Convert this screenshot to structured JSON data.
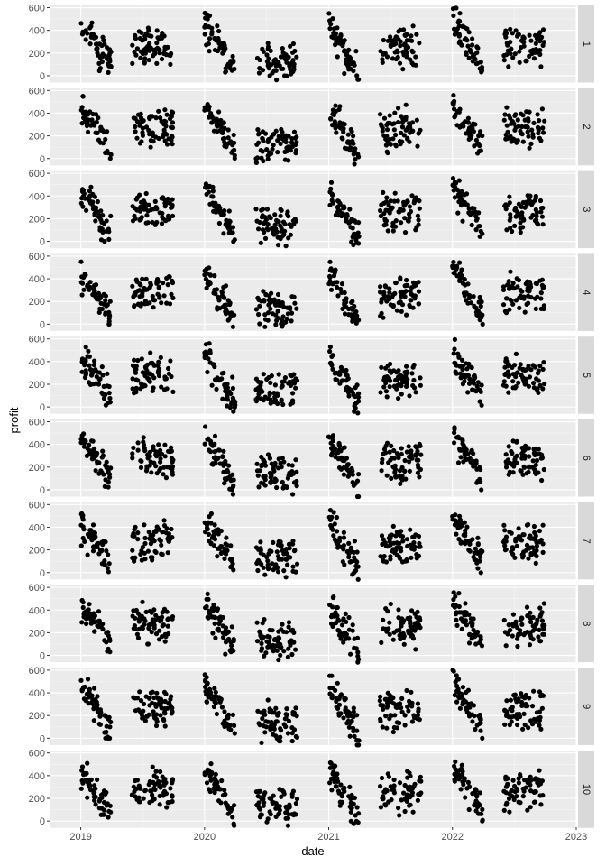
{
  "chart_data": {
    "type": "scatter",
    "xlabel": "date",
    "ylabel": "profit",
    "x_ticks": [
      "2019",
      "2020",
      "2021",
      "2022",
      "2023"
    ],
    "xlim": [
      "2018-10-01",
      "2023-01-01"
    ],
    "y_ticks": [
      0,
      200,
      400,
      600
    ],
    "ylim": [
      -60,
      620
    ],
    "grid": true,
    "point_color": "#000000",
    "panel_background": "#ebebeb",
    "strip_background": "#d9d9d9",
    "facets": [
      "1",
      "2",
      "3",
      "4",
      "5",
      "6",
      "7",
      "8",
      "9",
      "10"
    ],
    "clusters": [
      {
        "start": "2019-01-01",
        "end": "2019-03-31",
        "trend": "decreasing",
        "profit_range": [
          0,
          550
        ]
      },
      {
        "start": "2019-06-01",
        "end": "2019-09-30",
        "trend": "flat",
        "profit_range": [
          100,
          480
        ]
      },
      {
        "start": "2020-01-01",
        "end": "2020-03-31",
        "trend": "decreasing",
        "profit_range": [
          -40,
          560
        ]
      },
      {
        "start": "2020-06-01",
        "end": "2020-09-30",
        "trend": "flat",
        "profit_range": [
          -40,
          350
        ]
      },
      {
        "start": "2021-01-01",
        "end": "2021-03-31",
        "trend": "decreasing",
        "profit_range": [
          -60,
          550
        ]
      },
      {
        "start": "2021-06-01",
        "end": "2021-09-30",
        "trend": "flat",
        "profit_range": [
          50,
          480
        ]
      },
      {
        "start": "2022-01-01",
        "end": "2022-03-31",
        "trend": "decreasing",
        "profit_range": [
          0,
          600
        ]
      },
      {
        "start": "2022-06-01",
        "end": "2022-09-30",
        "trend": "flat",
        "profit_range": [
          80,
          480
        ]
      }
    ]
  }
}
